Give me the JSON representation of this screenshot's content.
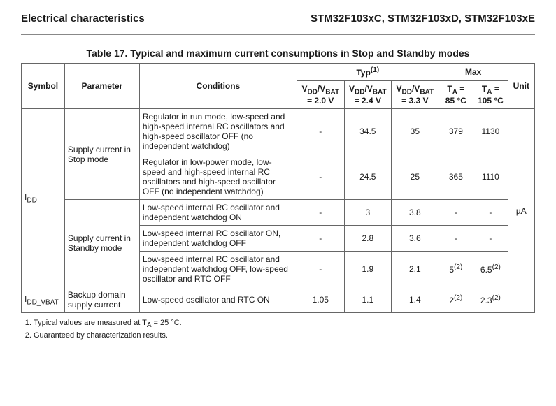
{
  "header": {
    "left": "Electrical characteristics",
    "right": "STM32F103xC, STM32F103xD, STM32F103xE"
  },
  "table": {
    "caption": "Table 17. Typical and maximum current consumptions in Stop and Standby modes",
    "head": {
      "symbol": "Symbol",
      "parameter": "Parameter",
      "conditions": "Conditions",
      "typ": "Typ",
      "typ_sup": "(1)",
      "max": "Max",
      "unit": "Unit",
      "vlabel_pre": "V",
      "vlabel_dd": "DD",
      "vlabel_slash": "/V",
      "vlabel_bat": "BAT",
      "v20": "= 2.0 V",
      "v24": "= 2.4 V",
      "v33": "= 3.3 V",
      "ta_pre": "T",
      "ta_a": "A",
      "ta_eq": " = ",
      "ta85": "85 °C",
      "ta105": "105 °C"
    },
    "unit": "µA",
    "sym_idd_pre": "I",
    "sym_idd_sub": "DD",
    "sym_ivbat_pre": "I",
    "sym_ivbat_sub": "DD_VBAT",
    "param_stop": "Supply current in Stop mode",
    "param_standby": "Supply current in Standby mode",
    "param_bak": "Backup domain supply current",
    "rows": [
      {
        "cond": "Regulator in run mode, low-speed and high-speed internal RC oscillators and high-speed oscillator OFF (no independent watchdog)",
        "v20": "-",
        "v24": "34.5",
        "v33": "35",
        "m85": "379",
        "m105": "1130"
      },
      {
        "cond": "Regulator in low-power mode, low-speed and high-speed internal RC oscillators and high-speed oscillator OFF (no independent watchdog)",
        "v20": "-",
        "v24": "24.5",
        "v33": "25",
        "m85": "365",
        "m105": "1110"
      },
      {
        "cond": "Low-speed internal RC oscillator and independent watchdog ON",
        "v20": "-",
        "v24": "3",
        "v33": "3.8",
        "m85": "-",
        "m105": "-"
      },
      {
        "cond": "Low-speed internal RC oscillator ON, independent watchdog OFF",
        "v20": "-",
        "v24": "2.8",
        "v33": "3.6",
        "m85": "-",
        "m105": "-"
      },
      {
        "cond": "Low-speed internal RC oscillator and independent watchdog OFF, low-speed oscillator and RTC OFF",
        "v20": "-",
        "v24": "1.9",
        "v33": "2.1",
        "m85": "5",
        "m85_sup": "(2)",
        "m105": "6.5",
        "m105_sup": "(2)"
      },
      {
        "cond": "Low-speed oscillator and RTC ON",
        "v20": "1.05",
        "v24": "1.1",
        "v33": "1.4",
        "m85": "2",
        "m85_sup": "(2)",
        "m105": "2.3",
        "m105_sup": "(2)"
      }
    ]
  },
  "notes": {
    "n1_pre": "Typical values are measured at T",
    "n1_a": "A",
    "n1_post": " = 25 °C.",
    "n2": "Guaranteed by characterization results."
  }
}
